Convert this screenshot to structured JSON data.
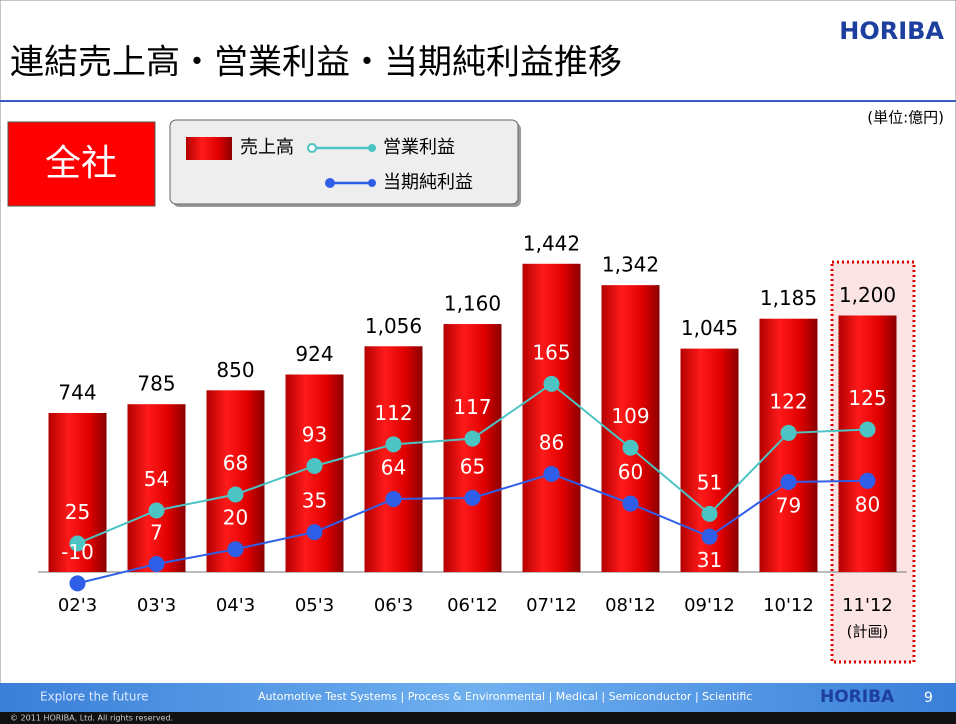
{
  "header": {
    "title": "連結売上高・営業利益・当期純利益推移",
    "logo": "HORIBA"
  },
  "badge": "全社",
  "footer": {
    "tagline": "Explore the future",
    "segments": "Automotive Test Systems | Process & Environmental | Medical | Semiconductor | Scientific",
    "logo": "HORIBA",
    "page": "9",
    "copyright": "© 2011 HORIBA, Ltd. All rights reserved."
  },
  "chart_data": {
    "type": "bar_line",
    "unit_note": "(単位:億円)",
    "plan_note": "(計画)",
    "categories": [
      "02'3",
      "03'3",
      "04'3",
      "05'3",
      "06'3",
      "06'12",
      "07'12",
      "08'12",
      "09'12",
      "10'12",
      "11'12"
    ],
    "ylim": [
      0,
      1600
    ],
    "y2lim": [
      0,
      300
    ],
    "series": [
      {
        "name": "売上高",
        "type": "bar",
        "color": "#e00000",
        "values": [
          744,
          785,
          850,
          924,
          1056,
          1160,
          1442,
          1342,
          1045,
          1185,
          1200
        ],
        "value_labels": [
          "744",
          "785",
          "850",
          "924",
          "1,056",
          "1,160",
          "1,442",
          "1,342",
          "1,045",
          "1,185",
          "1,200"
        ]
      },
      {
        "name": "営業利益",
        "type": "line",
        "axis": "y2",
        "color": "#4cc4c4",
        "values": [
          25,
          54,
          68,
          93,
          112,
          117,
          165,
          109,
          51,
          122,
          125
        ]
      },
      {
        "name": "当期純利益",
        "type": "line",
        "axis": "y2",
        "color": "#2f5fe8",
        "values": [
          -10,
          7,
          20,
          35,
          64,
          65,
          86,
          60,
          31,
          79,
          80
        ]
      }
    ]
  }
}
